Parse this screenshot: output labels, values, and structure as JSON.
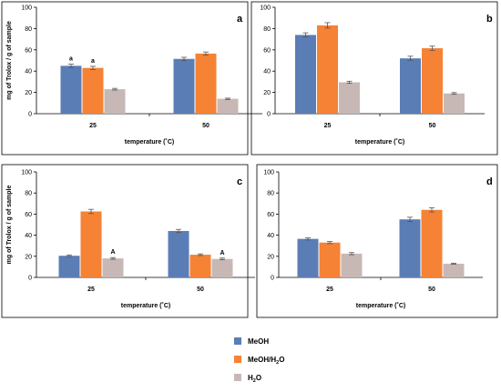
{
  "colors": {
    "MeOH": "#5b7db5",
    "MeOH/H2O": "#f58235",
    "H2O": "#c7b8b6",
    "frame": "#000000"
  },
  "legend": [
    {
      "key": "MeOH",
      "label": "MeOH",
      "sub": ""
    },
    {
      "key": "MeOH/H2O",
      "label": "MeOH/H",
      "sub": "2",
      "tail": "O"
    },
    {
      "key": "H2O",
      "label": "H",
      "sub": "2",
      "tail": "O"
    }
  ],
  "chart_data": [
    {
      "type": "bar",
      "panel_label": "a",
      "xlabel": "temperature (˚C)",
      "ylabel": "mg of Trolox / g of sample",
      "categories": [
        "25",
        "50"
      ],
      "ylim": [
        0,
        100
      ],
      "yticks": [
        0,
        20,
        40,
        60,
        80,
        100
      ],
      "series": [
        {
          "name": "MeOH",
          "values": [
            45,
            51.5
          ],
          "errors": [
            1.5,
            1.5
          ],
          "labels": [
            "a",
            ""
          ]
        },
        {
          "name": "MeOH/H2O",
          "values": [
            43,
            56.5
          ],
          "errors": [
            1.5,
            1.5
          ],
          "labels": [
            "a",
            ""
          ]
        },
        {
          "name": "H2O",
          "values": [
            23,
            14
          ],
          "errors": [
            0.8,
            0.6
          ],
          "labels": [
            "",
            ""
          ]
        }
      ]
    },
    {
      "type": "bar",
      "panel_label": "b",
      "xlabel": "temperature (˚C)",
      "ylabel": "",
      "categories": [
        "25",
        "50"
      ],
      "ylim": [
        0,
        100
      ],
      "yticks": [
        0,
        20,
        40,
        60,
        80,
        100
      ],
      "series": [
        {
          "name": "MeOH",
          "values": [
            74,
            52
          ],
          "errors": [
            2,
            2
          ],
          "labels": [
            "",
            ""
          ]
        },
        {
          "name": "MeOH/H2O",
          "values": [
            83,
            61.5
          ],
          "errors": [
            2.5,
            2
          ],
          "labels": [
            "",
            ""
          ]
        },
        {
          "name": "H2O",
          "values": [
            29.5,
            19
          ],
          "errors": [
            1,
            0.8
          ],
          "labels": [
            "",
            ""
          ]
        }
      ]
    },
    {
      "type": "bar",
      "panel_label": "c",
      "xlabel": "temperature (˚C)",
      "ylabel": "mg of Trolox / g of sample",
      "categories": [
        "25",
        "50"
      ],
      "ylim": [
        0,
        100
      ],
      "yticks": [
        0,
        20,
        40,
        60,
        80,
        100
      ],
      "series": [
        {
          "name": "MeOH",
          "values": [
            20.5,
            44
          ],
          "errors": [
            0.8,
            1.5
          ],
          "labels": [
            "",
            ""
          ]
        },
        {
          "name": "MeOH/H2O",
          "values": [
            62.5,
            21.5
          ],
          "errors": [
            2,
            0.8
          ],
          "labels": [
            "",
            ""
          ]
        },
        {
          "name": "H2O",
          "values": [
            18,
            17.5
          ],
          "errors": [
            0.8,
            0.8
          ],
          "labels": [
            "A",
            "A"
          ]
        }
      ]
    },
    {
      "type": "bar",
      "panel_label": "d",
      "xlabel": "temperature (˚C)",
      "ylabel": "",
      "categories": [
        "25",
        "50"
      ],
      "ylim": [
        0,
        100
      ],
      "yticks": [
        0,
        20,
        40,
        60,
        80,
        100
      ],
      "series": [
        {
          "name": "MeOH",
          "values": [
            36.5,
            55
          ],
          "errors": [
            1,
            2
          ],
          "labels": [
            "",
            ""
          ]
        },
        {
          "name": "MeOH/H2O",
          "values": [
            33,
            64
          ],
          "errors": [
            1,
            2
          ],
          "labels": [
            "",
            ""
          ]
        },
        {
          "name": "H2O",
          "values": [
            22.5,
            13
          ],
          "errors": [
            1,
            0.5
          ],
          "labels": [
            "",
            ""
          ]
        }
      ]
    }
  ]
}
